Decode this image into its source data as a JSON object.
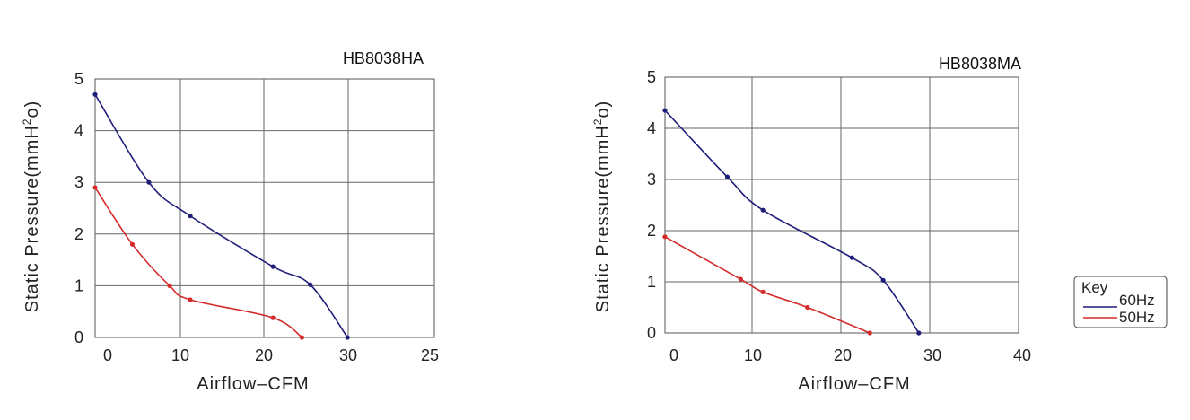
{
  "chart_data": [
    {
      "type": "line",
      "title": "HB8038HA",
      "xlabel": "Airflow–CFM",
      "ylabel": "Static Pressure(mmH2o)",
      "ylabel_parts": {
        "pre": "Static Pressure(mmH",
        "sup": "2",
        "post": "o)"
      },
      "xticks": [
        "0",
        "10",
        "20",
        "30",
        "25"
      ],
      "yticks": [
        "0",
        "1",
        "2",
        "3",
        "4",
        "5"
      ],
      "series": [
        {
          "name": "60Hz",
          "color": "#1f1f7a",
          "points": [
            [
              -1.5,
              4.7
            ],
            [
              5,
              3.0
            ],
            [
              10,
              2.35
            ],
            [
              20,
              1.37
            ],
            [
              24.5,
              1.02
            ],
            [
              29,
              0.0
            ]
          ]
        },
        {
          "name": "50Hz",
          "color": "#d42a2a",
          "points": [
            [
              -1.5,
              2.9
            ],
            [
              3,
              1.8
            ],
            [
              7.5,
              1.0
            ],
            [
              10,
              0.73
            ],
            [
              20,
              0.38
            ],
            [
              23.5,
              0.0
            ]
          ]
        }
      ]
    },
    {
      "type": "line",
      "title": "HB8038MA",
      "xlabel": "Airflow–CFM",
      "ylabel": "Static Pressure(mmH2o)",
      "ylabel_parts": {
        "pre": "Static Pressure(mmH",
        "sup": "2",
        "post": "o)"
      },
      "xticks": [
        "0",
        "10",
        "20",
        "30",
        "40"
      ],
      "yticks": [
        "0",
        "1",
        "2",
        "3",
        "4",
        "5"
      ],
      "series": [
        {
          "name": "60Hz",
          "color": "#1f1f7a",
          "points": [
            [
              -1,
              4.35
            ],
            [
              6,
              3.05
            ],
            [
              10,
              2.4
            ],
            [
              20,
              1.47
            ],
            [
              23.5,
              1.03
            ],
            [
              27.5,
              0.0
            ]
          ]
        },
        {
          "name": "50Hz",
          "color": "#d42a2a",
          "points": [
            [
              -1,
              1.88
            ],
            [
              7.5,
              1.05
            ],
            [
              10,
              0.8
            ],
            [
              15,
              0.5
            ],
            [
              22,
              0.0
            ]
          ]
        }
      ]
    }
  ],
  "legend": {
    "title": "Key",
    "items": [
      {
        "label": "60Hz",
        "color": "#1f1f7a"
      },
      {
        "label": "50Hz",
        "color": "#d42a2a"
      }
    ]
  }
}
